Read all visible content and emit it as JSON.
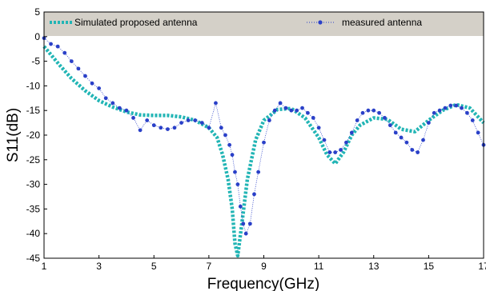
{
  "chart_data": {
    "type": "line",
    "title": "",
    "xlabel": "Frequency(GHz)",
    "ylabel": "S11(dB)",
    "xlim": [
      1,
      17
    ],
    "ylim": [
      -45,
      5
    ],
    "x_ticks": [
      1,
      3,
      5,
      7,
      9,
      11,
      13,
      15,
      17
    ],
    "y_ticks": [
      5,
      0,
      -5,
      -10,
      -15,
      -20,
      -25,
      -30,
      -35,
      -40,
      -45
    ],
    "grid": false,
    "legend_position": "top",
    "background": "#ffffff",
    "legend_background": "#d4d0c8",
    "series": [
      {
        "name": "Simulated proposed antenna",
        "color": "#22b5b5",
        "style": "dashed-thick",
        "x": [
          1.0,
          1.3,
          1.6,
          2.0,
          2.5,
          3.0,
          3.5,
          4.0,
          4.5,
          5.0,
          5.5,
          6.0,
          6.5,
          7.0,
          7.3,
          7.5,
          7.7,
          7.85,
          7.95,
          8.05,
          8.2,
          8.4,
          8.7,
          9.0,
          9.5,
          10.0,
          10.5,
          11.0,
          11.3,
          11.6,
          11.9,
          12.2,
          12.5,
          13.0,
          13.5,
          14.0,
          14.5,
          15.0,
          15.5,
          16.0,
          16.5,
          17.0
        ],
        "y": [
          -2.0,
          -4.0,
          -6.0,
          -8.5,
          -11.0,
          -13.0,
          -14.3,
          -15.3,
          -15.9,
          -16.0,
          -16.0,
          -16.3,
          -17.0,
          -18.5,
          -20.5,
          -24.0,
          -29.0,
          -35.0,
          -42.0,
          -44.5,
          -38.0,
          -29.0,
          -21.0,
          -17.0,
          -14.8,
          -14.6,
          -16.5,
          -20.5,
          -24.0,
          -25.8,
          -23.5,
          -20.0,
          -18.0,
          -16.5,
          -16.8,
          -18.8,
          -19.3,
          -17.0,
          -15.0,
          -13.8,
          -14.5,
          -17.5
        ]
      },
      {
        "name": "measured antenna",
        "color": "#2a40c8",
        "style": "dotted-markers",
        "x": [
          1.0,
          1.25,
          1.5,
          1.75,
          2.0,
          2.25,
          2.5,
          2.75,
          3.0,
          3.25,
          3.5,
          3.75,
          4.0,
          4.25,
          4.5,
          4.75,
          5.0,
          5.25,
          5.5,
          5.75,
          6.0,
          6.25,
          6.5,
          6.75,
          7.0,
          7.25,
          7.45,
          7.6,
          7.75,
          7.85,
          7.95,
          8.05,
          8.15,
          8.25,
          8.35,
          8.5,
          8.65,
          8.8,
          9.0,
          9.2,
          9.4,
          9.6,
          9.8,
          10.0,
          10.2,
          10.4,
          10.6,
          10.8,
          11.0,
          11.2,
          11.4,
          11.6,
          11.8,
          12.0,
          12.2,
          12.4,
          12.6,
          12.8,
          13.0,
          13.2,
          13.4,
          13.6,
          13.8,
          14.0,
          14.2,
          14.4,
          14.6,
          14.8,
          15.0,
          15.2,
          15.4,
          15.6,
          15.8,
          16.0,
          16.2,
          16.4,
          16.6,
          16.8,
          17.0
        ],
        "y": [
          -0.3,
          -1.5,
          -2.0,
          -3.3,
          -5.0,
          -6.5,
          -8.0,
          -9.5,
          -10.5,
          -12.5,
          -13.5,
          -14.5,
          -15.0,
          -16.5,
          -19.0,
          -17.0,
          -18.0,
          -18.5,
          -18.8,
          -18.5,
          -17.5,
          -17.0,
          -17.0,
          -17.5,
          -18.5,
          -13.5,
          -18.5,
          -20.0,
          -22.0,
          -24.0,
          -27.5,
          -30.0,
          -34.5,
          -38.0,
          -40.0,
          -38.0,
          -32.0,
          -27.5,
          -21.5,
          -17.0,
          -15.0,
          -13.5,
          -14.5,
          -15.0,
          -15.0,
          -14.5,
          -15.5,
          -16.5,
          -18.5,
          -21.0,
          -23.5,
          -23.5,
          -23.0,
          -21.5,
          -19.5,
          -17.0,
          -15.5,
          -15.0,
          -15.0,
          -15.5,
          -16.5,
          -18.0,
          -19.5,
          -20.5,
          -21.5,
          -23.0,
          -23.5,
          -21.0,
          -17.5,
          -15.5,
          -15.0,
          -14.5,
          -14.0,
          -14.0,
          -14.5,
          -15.5,
          -17.0,
          -19.5,
          -22.0
        ]
      }
    ]
  }
}
